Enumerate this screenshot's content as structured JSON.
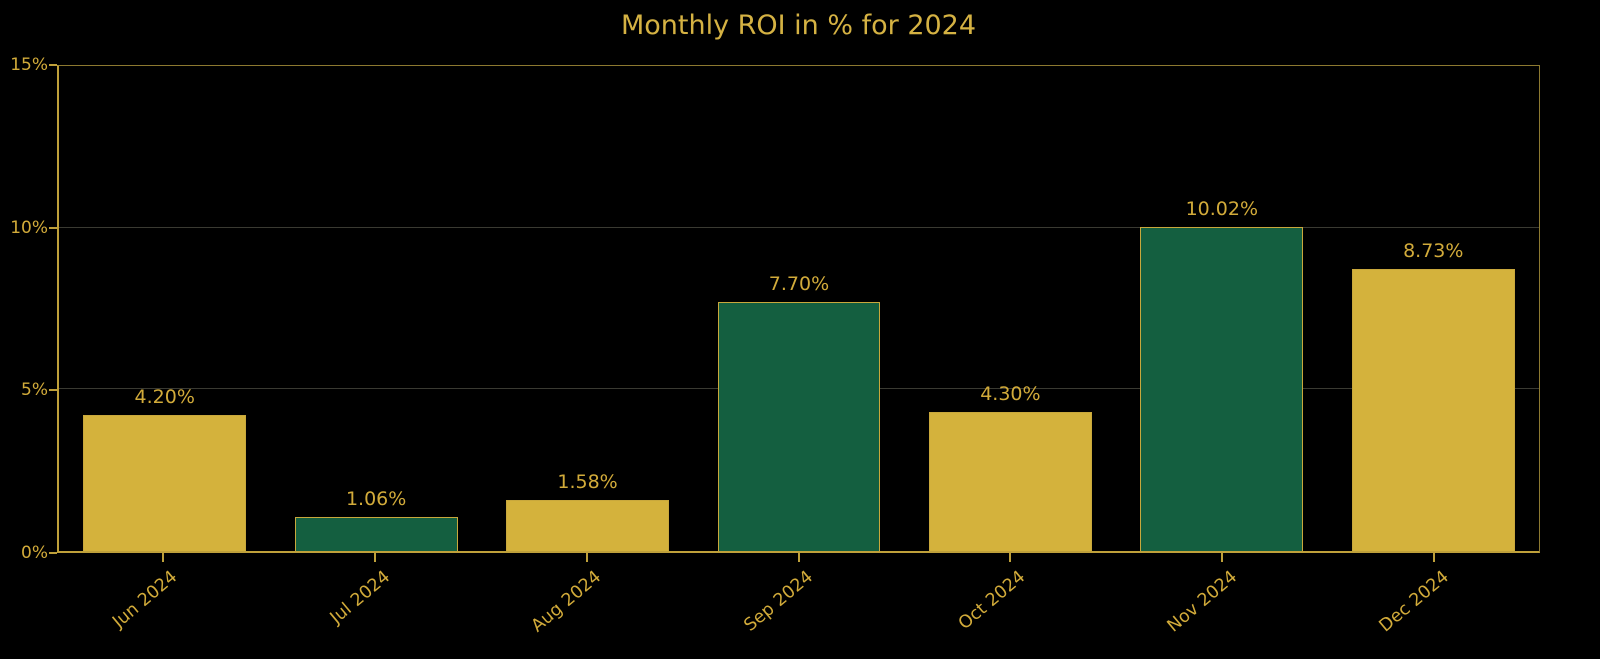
{
  "title": "Monthly ROI in % for 2024",
  "colors": {
    "background": "#000000",
    "gold_bar": "#d4b23c",
    "green_bar": "#145f40",
    "bar_edge": "#c9a83c",
    "text_gold": "#d2ab3a",
    "grid": "#3a3a32",
    "spine_bright": "#bfa03a",
    "spine_dim": "#8c7930"
  },
  "chart_data": {
    "type": "bar",
    "title": "Monthly ROI in % for 2024",
    "categories": [
      "Jun 2024",
      "Jul 2024",
      "Aug 2024",
      "Sep 2024",
      "Oct 2024",
      "Nov 2024",
      "Dec 2024"
    ],
    "values": [
      4.2,
      1.06,
      1.58,
      7.7,
      4.3,
      10.02,
      8.73
    ],
    "bar_labels": [
      "4.20%",
      "1.06%",
      "1.58%",
      "7.70%",
      "4.30%",
      "10.02%",
      "8.73%"
    ],
    "bar_color_keys": [
      "gold_bar",
      "green_bar",
      "gold_bar",
      "green_bar",
      "gold_bar",
      "green_bar",
      "gold_bar"
    ],
    "xlabel": "",
    "ylabel": "",
    "ylim": [
      0,
      15
    ],
    "yticks": [
      0,
      5,
      10,
      15
    ],
    "ytick_labels": [
      "0%",
      "5%",
      "10%",
      "15%"
    ],
    "gridlines_at": [
      5,
      10
    ],
    "grid": true,
    "legend": false,
    "x_label_rotation_deg": -40
  }
}
